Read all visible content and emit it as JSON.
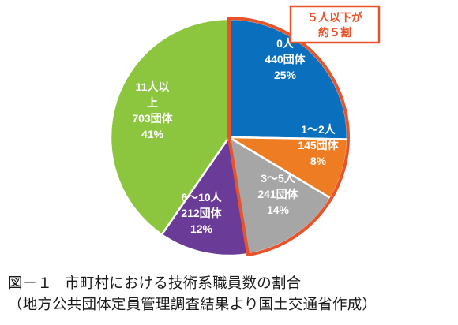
{
  "chart_data": {
    "type": "pie",
    "start_direction": "clockwise-from-top",
    "slices": [
      {
        "label_lines": [
          "0人",
          "440団体",
          "25%"
        ],
        "count": 440,
        "percent": 25,
        "color": "#0a6fbd",
        "highlighted_group": true
      },
      {
        "label_lines": [
          "1～2人",
          "145団体",
          "8%"
        ],
        "count": 145,
        "percent": 8,
        "color": "#ee7c22",
        "highlighted_group": true
      },
      {
        "label_lines": [
          "3～5人",
          "241団体",
          "14%"
        ],
        "count": 241,
        "percent": 14,
        "color": "#a6a6a6",
        "highlighted_group": true
      },
      {
        "label_lines": [
          "6～10人",
          "212団体",
          "12%"
        ],
        "count": 212,
        "percent": 12,
        "color": "#6a3c98",
        "highlighted_group": false
      },
      {
        "label_lines": [
          "11人以",
          "上",
          "703団体",
          "41%"
        ],
        "count": 703,
        "percent": 41,
        "color": "#8cc63e",
        "highlighted_group": false
      }
    ],
    "highlight": {
      "border_color": "#e8532a",
      "callout_lines": [
        "５人以下が",
        "約５割"
      ]
    }
  },
  "caption": {
    "figure_no": "図－１",
    "title": "市町村における技術系職員数の割合",
    "source": "（地方公共団体定員管理調査結果より国土交通省作成）"
  }
}
